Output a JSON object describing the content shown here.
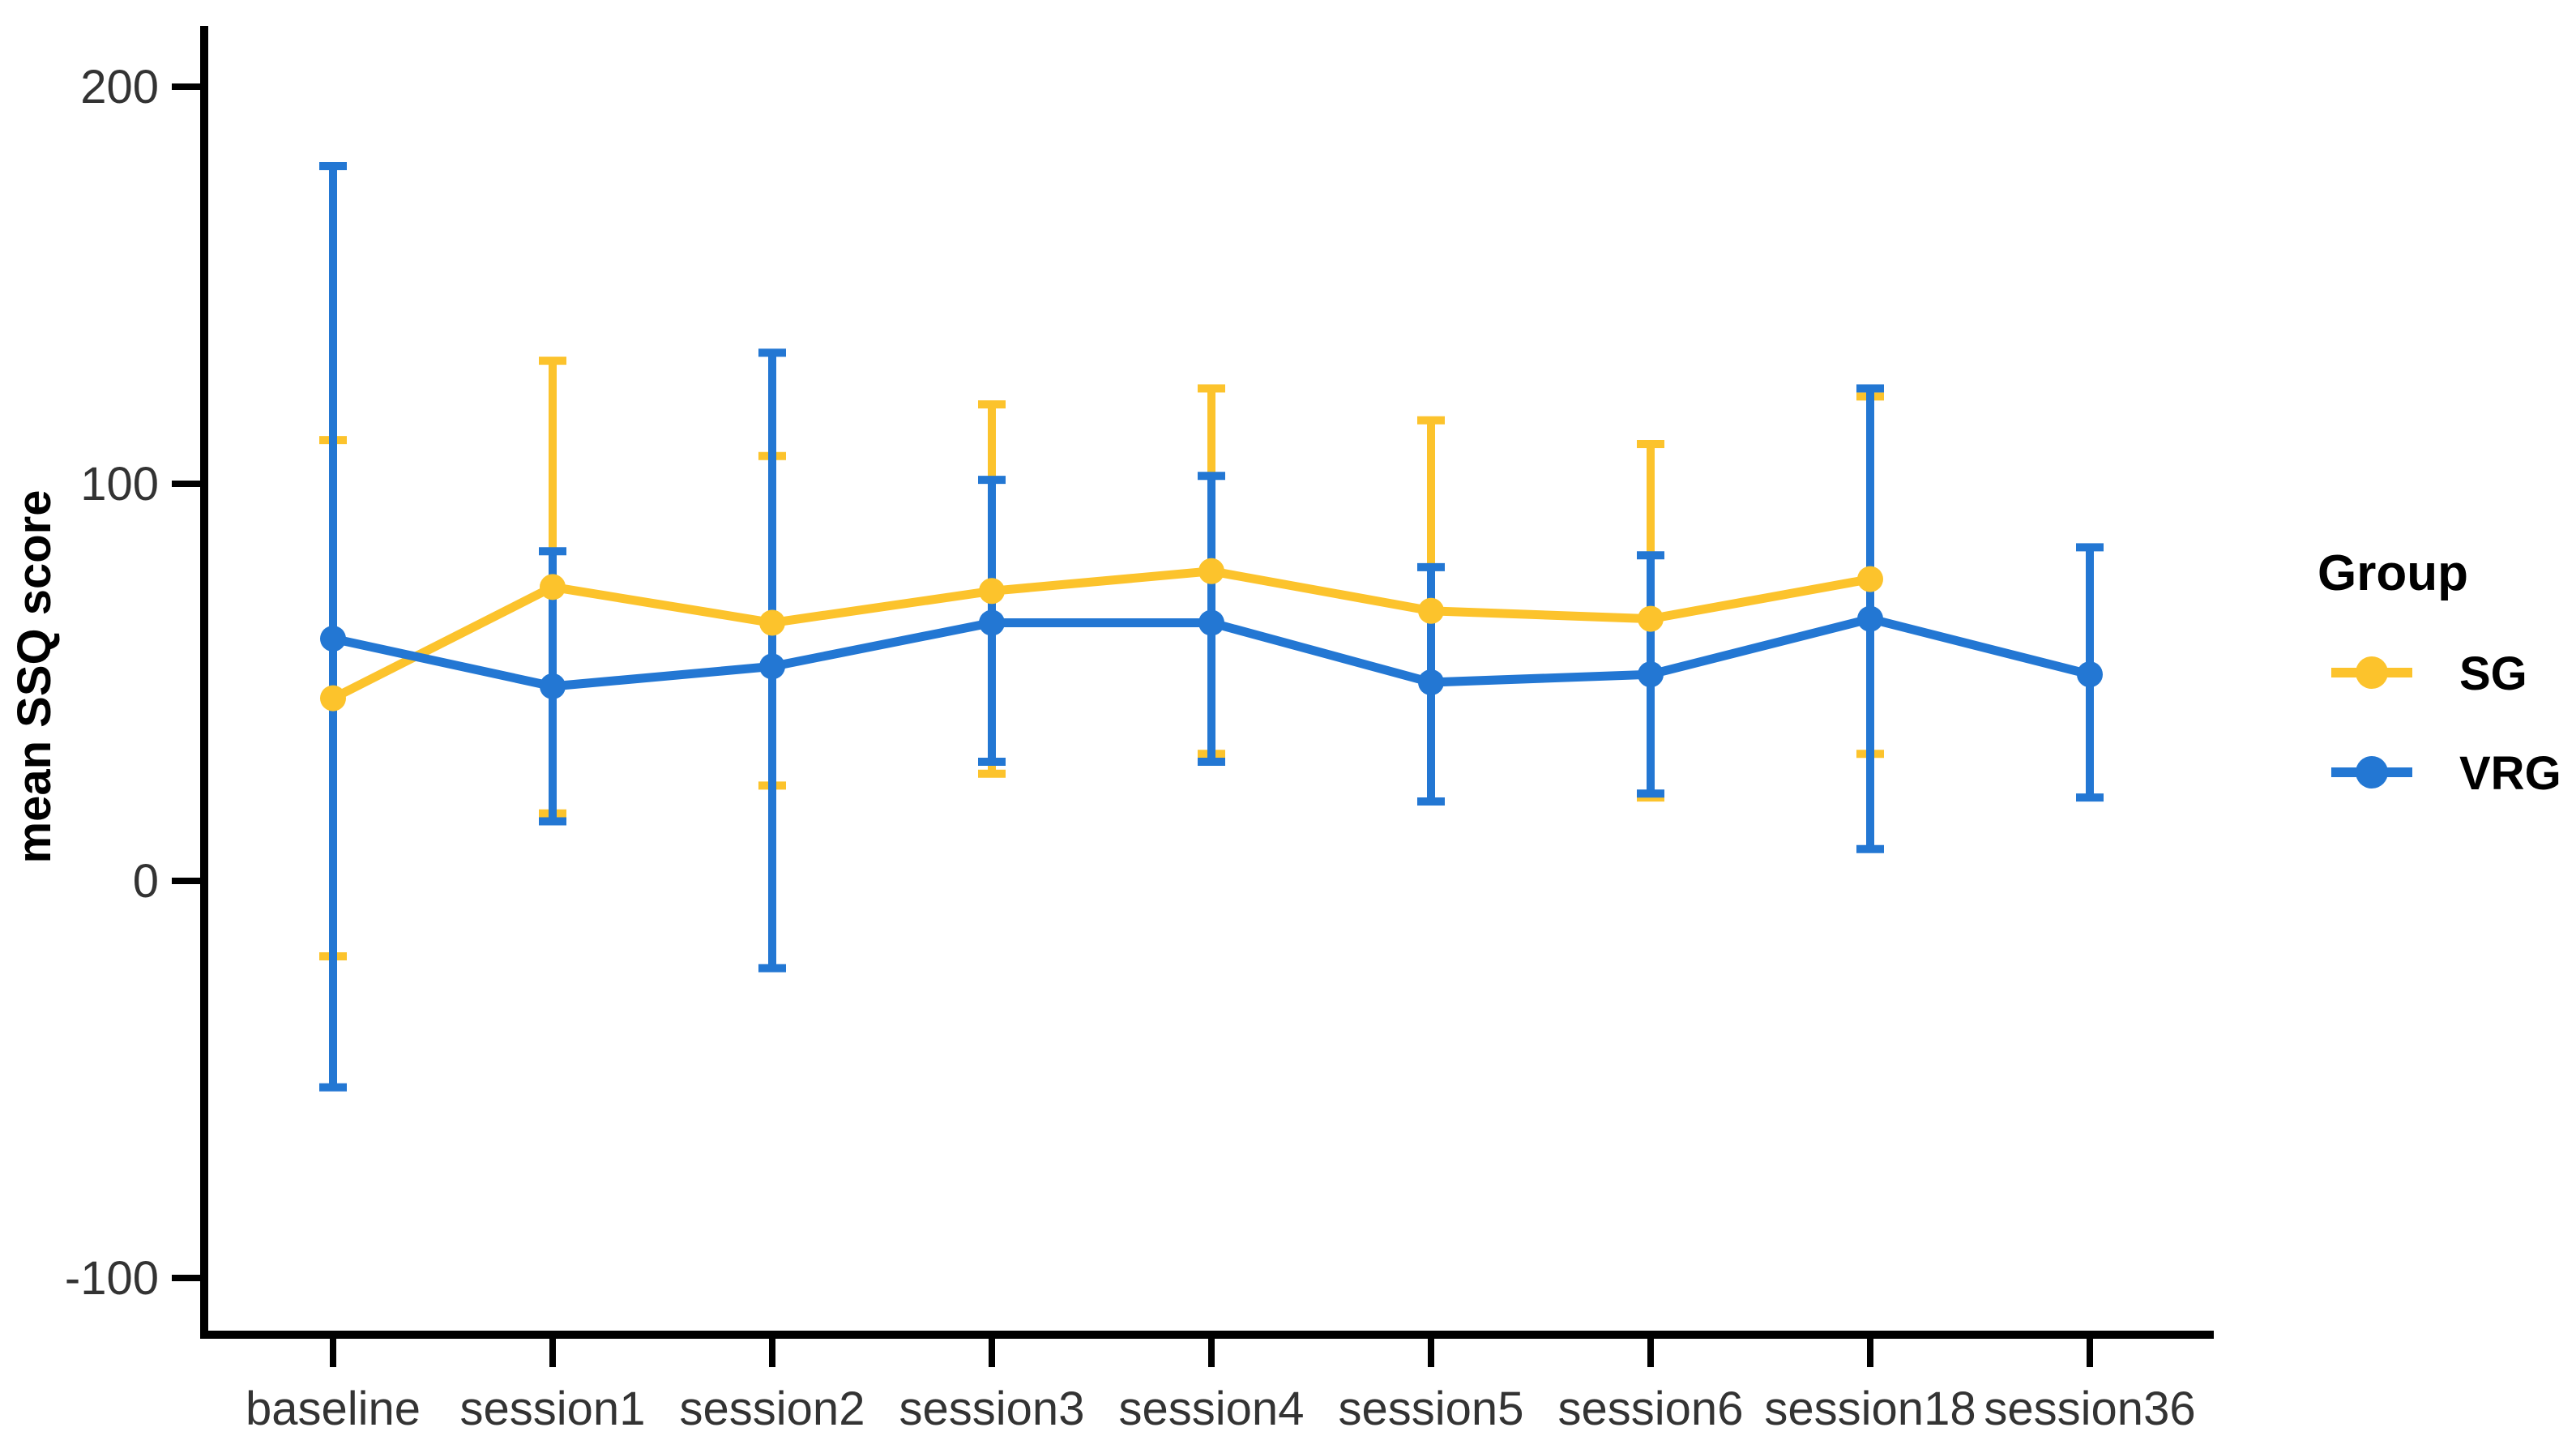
{
  "chart_data": {
    "type": "line",
    "title": "",
    "xlabel": "",
    "ylabel": "mean SSQ score",
    "legend_title": "Group",
    "legend_position": "right",
    "grid": false,
    "error_bars": true,
    "categories": [
      "baseline",
      "session1",
      "session2",
      "session3",
      "session4",
      "session5",
      "session6",
      "session18",
      "session36"
    ],
    "y_ticks": [
      200,
      100,
      0,
      -100
    ],
    "ylim": [
      -115,
      215
    ],
    "series": [
      {
        "name": "SG",
        "color": "#FCC32C",
        "values": [
          46,
          74,
          65,
          73,
          78,
          68,
          66,
          76,
          null
        ],
        "ci_low": [
          -19,
          17,
          24,
          27,
          32,
          20,
          21,
          32,
          null
        ],
        "ci_high": [
          111,
          131,
          107,
          120,
          124,
          116,
          110,
          122,
          null
        ]
      },
      {
        "name": "VRG",
        "color": "#2377D3",
        "values": [
          61,
          49,
          54,
          65,
          65,
          50,
          52,
          66,
          52
        ],
        "ci_low": [
          -52,
          15,
          -22,
          30,
          30,
          20,
          22,
          8,
          21
        ],
        "ci_high": [
          180,
          83,
          133,
          101,
          102,
          79,
          82,
          124,
          84
        ]
      }
    ]
  }
}
